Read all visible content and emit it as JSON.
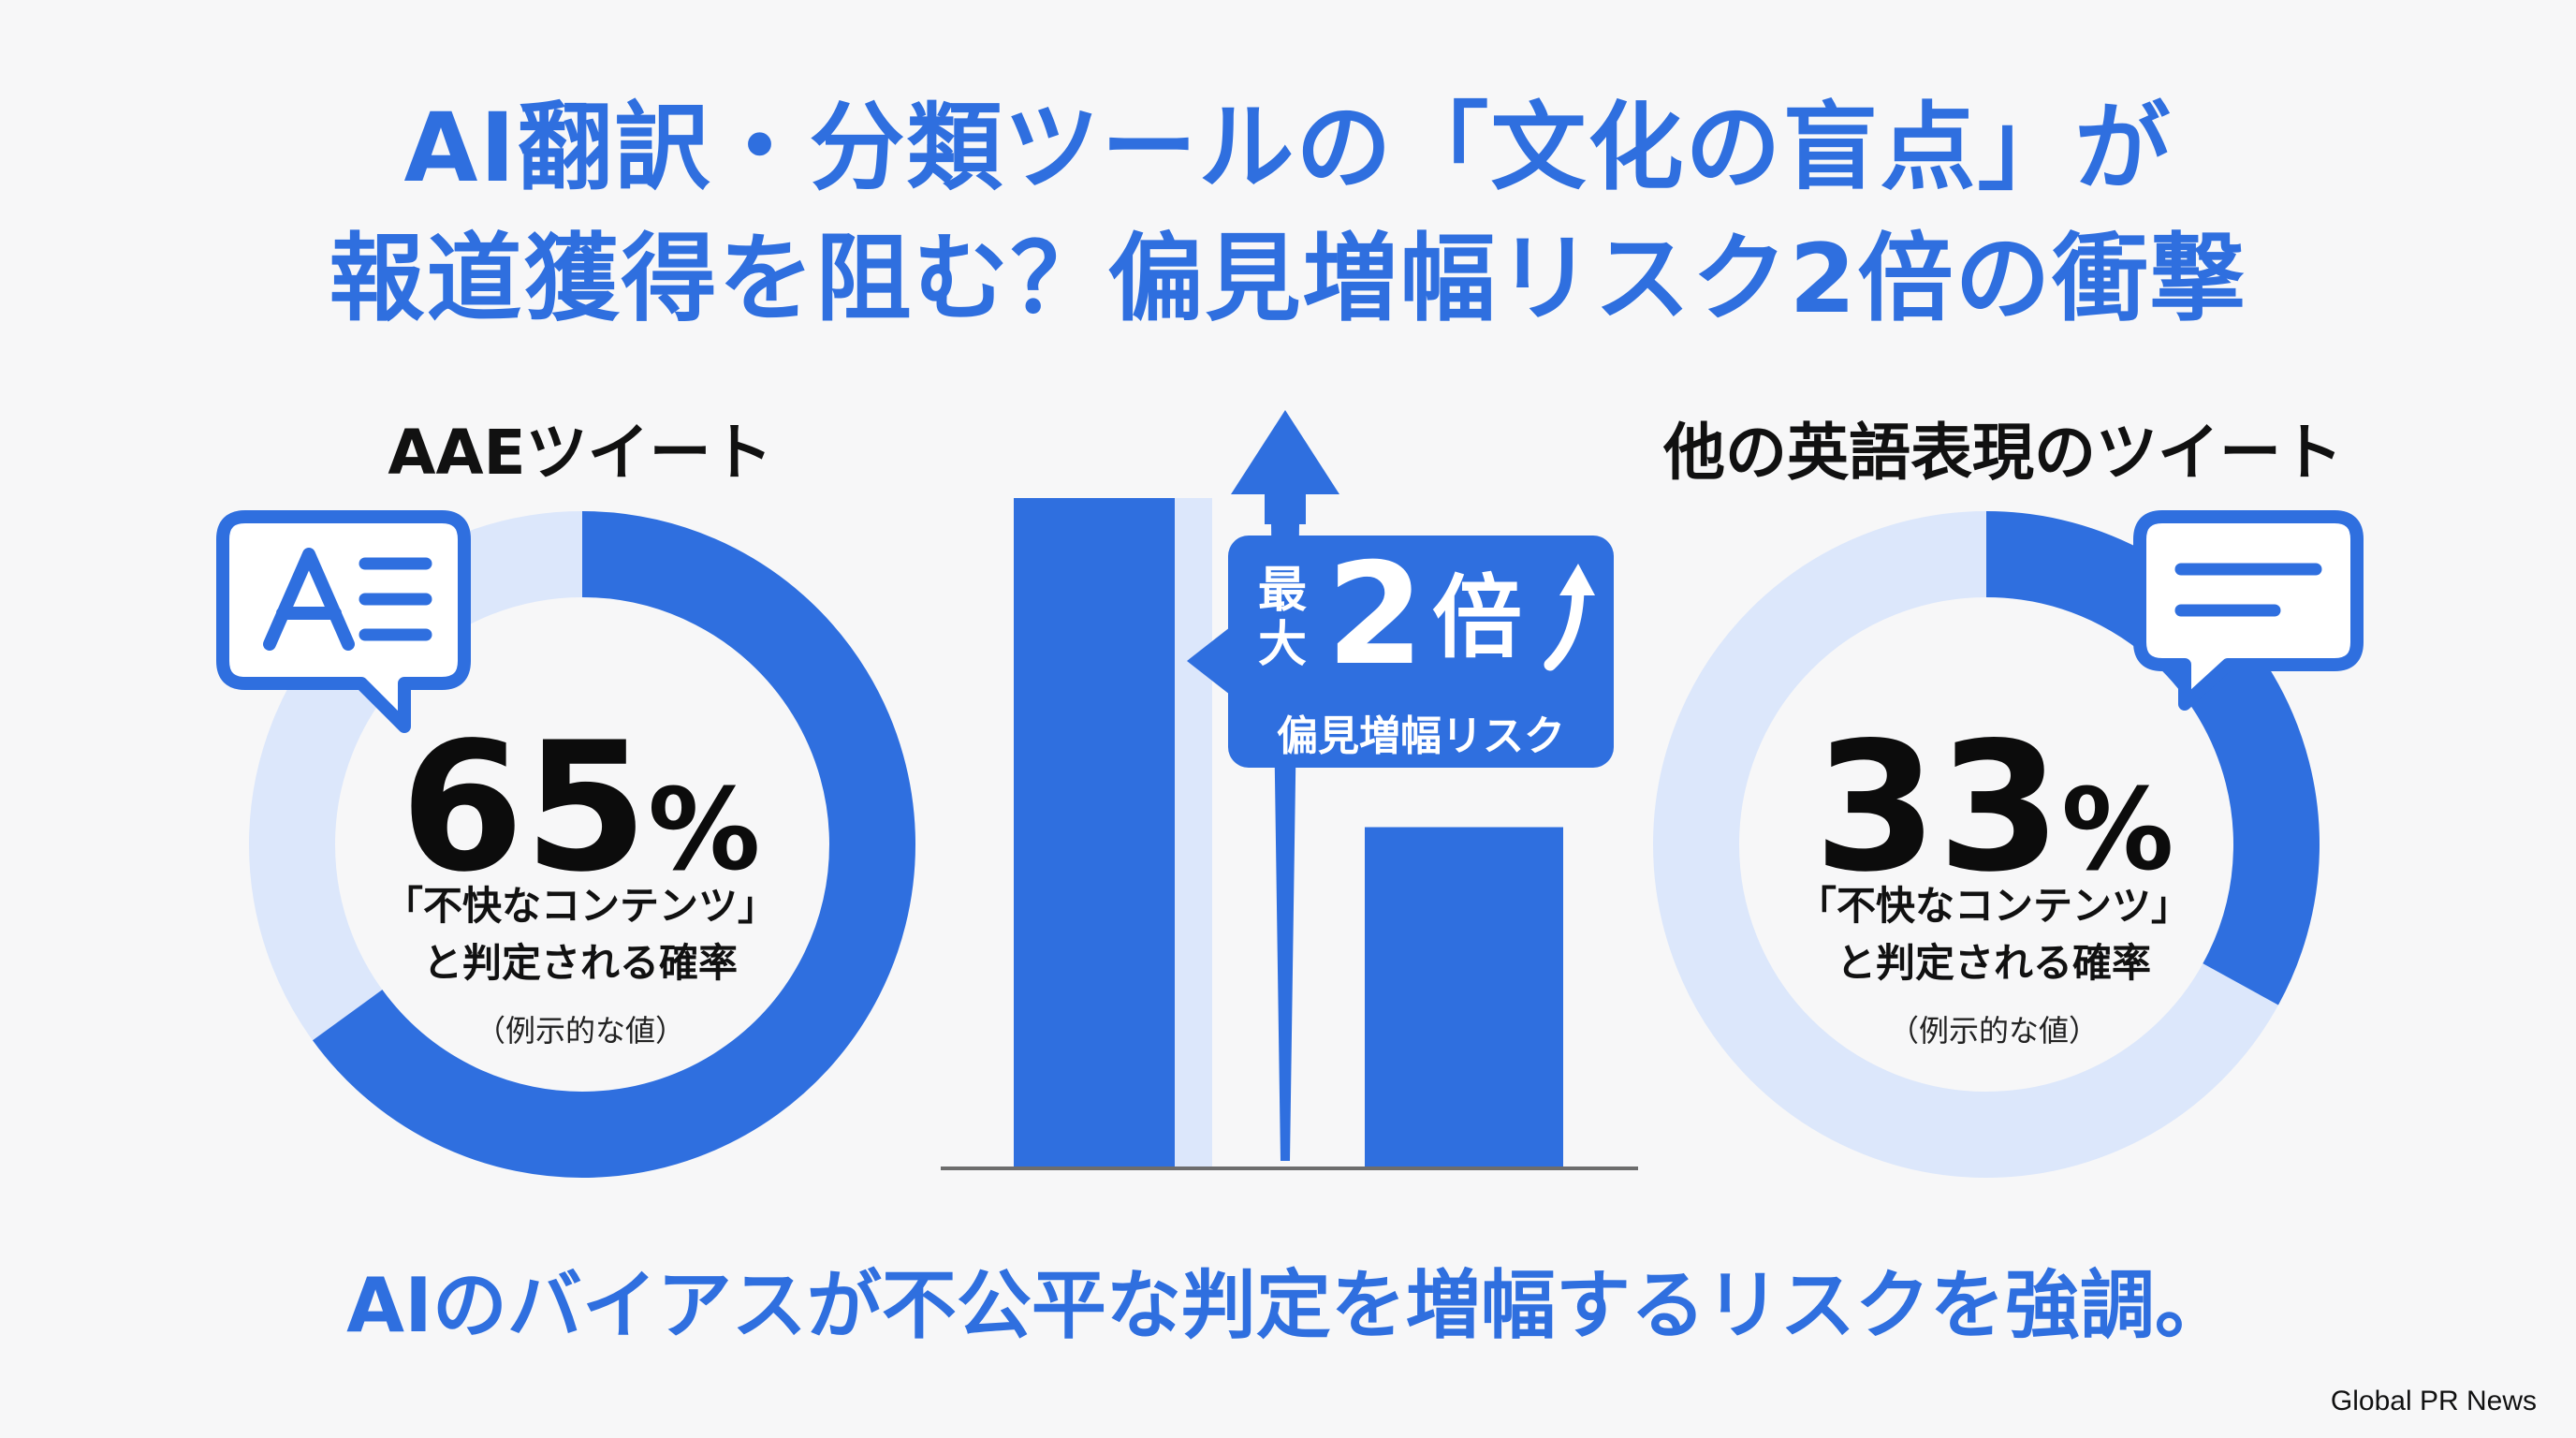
{
  "title": {
    "line1": "AI翻訳・分類ツールの「文化の盲点」が",
    "line2": "報道獲得を阻む？偏見増幅リスク2倍の衝撃"
  },
  "left": {
    "label": "AAEツイート",
    "value_number": "65",
    "value_unit": "%",
    "desc_line1": "「不快なコンテンツ」",
    "desc_line2": "と判定される確率",
    "note": "（例示的な値）",
    "icon": "translate-chat-icon"
  },
  "right": {
    "label": "他の英語表現のツイート",
    "value_number": "33",
    "value_unit": "%",
    "desc_line1": "「不快なコンテンツ」",
    "desc_line2": "と判定される確率",
    "note": "（例示的な値）",
    "icon": "message-chat-icon"
  },
  "callout": {
    "prefix_top": "最",
    "prefix_bottom": "大",
    "number": "2",
    "unit": "倍",
    "subtitle": "偏見増幅リスク"
  },
  "bottom_text": "AIのバイアスが不公平な判定を増幅するリスクを強調。",
  "footer": "Global PR News",
  "colors": {
    "accent": "#2f6fdf",
    "track": "#dce7fb",
    "background": "#f7f7f8"
  },
  "chart_data": [
    {
      "type": "pie",
      "donut": true,
      "categories": [
        "AAEツイート"
      ],
      "values": [
        65
      ],
      "unit": "%"
    },
    {
      "type": "pie",
      "donut": true,
      "categories": [
        "他の英語表現のツイート"
      ],
      "values": [
        33
      ],
      "unit": "%"
    },
    {
      "type": "bar",
      "categories": [
        "AAEツイート",
        "他の英語表現のツイート"
      ],
      "values": [
        65,
        33
      ]
    }
  ]
}
